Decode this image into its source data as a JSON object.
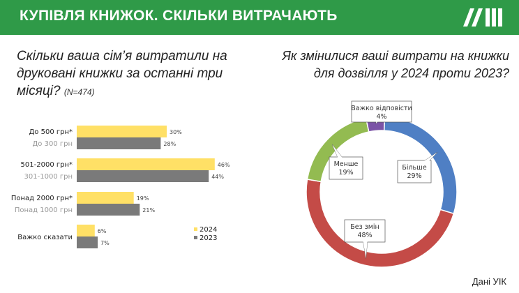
{
  "header": {
    "title": "КУПІВЛЯ КНИЖОК. СКІЛЬКИ ВИТРАЧАЮТЬ"
  },
  "colors": {
    "header_bg": "#2f9a48",
    "y2024": "#ffe066",
    "y2023": "#7a7a7a"
  },
  "left_question": {
    "text": "Скільки ваша сім’я витратили на друковані книжки за останні три місяці?",
    "n": "(N=474)"
  },
  "right_question": {
    "text": "Як змінилися ваші витрати на книжки для дозвілля у 2024 проти 2023?"
  },
  "footer": {
    "source": "Дані УІК"
  },
  "chart_data": [
    {
      "type": "bar",
      "orientation": "horizontal",
      "groups": [
        {
          "label_2024": "До 500 грн*",
          "label_2023": "До 300 грн",
          "values": [
            30,
            28
          ]
        },
        {
          "label_2024": "501-2000 грн*",
          "label_2023": "301-1000 грн",
          "values": [
            46,
            44
          ]
        },
        {
          "label_2024": "Понад 2000 грн*",
          "label_2023": "Понад 1000 грн",
          "values": [
            19,
            21
          ]
        },
        {
          "label_2024": "Важко сказати",
          "label_2023": "",
          "values": [
            6,
            7
          ]
        }
      ],
      "series": [
        {
          "name": "2024"
        },
        {
          "name": "2023"
        }
      ],
      "unit": "%",
      "xlim": [
        0,
        50
      ],
      "legend": "bottom-right"
    },
    {
      "type": "pie",
      "variant": "donut",
      "slices": [
        {
          "label": "Важко відповісти",
          "value": 4,
          "color": "#7b53a6"
        },
        {
          "label": "Більше",
          "value": 29,
          "color": "#4f7fc4"
        },
        {
          "label": "Без змін",
          "value": 48,
          "color": "#c44b47"
        },
        {
          "label": "Менше",
          "value": 19,
          "color": "#93bb51"
        }
      ],
      "unit": "%"
    }
  ]
}
